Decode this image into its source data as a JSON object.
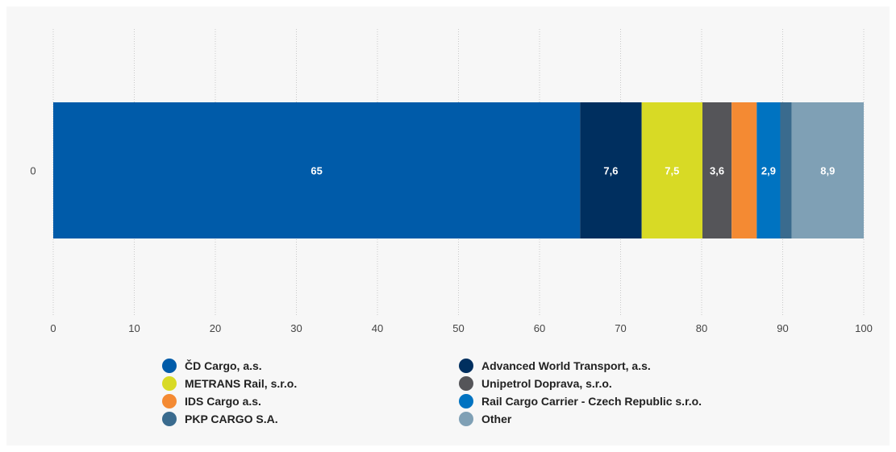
{
  "chart_data": {
    "type": "bar",
    "orientation": "horizontal",
    "stacked": true,
    "categories": [
      "0"
    ],
    "series": [
      {
        "name": "ČD Cargo, a.s.",
        "values": [
          65
        ],
        "label": "65",
        "color": "#005ba9"
      },
      {
        "name": "Advanced World Transport, a.s.",
        "values": [
          7.6
        ],
        "label": "7,6",
        "color": "#002f5f"
      },
      {
        "name": "METRANS Rail, s.r.o.",
        "values": [
          7.5
        ],
        "label": "7,5",
        "color": "#d8da25"
      },
      {
        "name": "Unipetrol Doprava, s.r.o.",
        "values": [
          3.6
        ],
        "label": "3,6",
        "color": "#555559"
      },
      {
        "name": "IDS Cargo a.s.",
        "values": [
          3.1
        ],
        "label": "",
        "color": "#f48a33"
      },
      {
        "name": "Rail Cargo Carrier - Czech Republic s.r.o.",
        "values": [
          2.9
        ],
        "label": "2,9",
        "color": "#0073c1"
      },
      {
        "name": "PKP CARGO S.A.",
        "values": [
          1.4
        ],
        "label": "",
        "color": "#3a6b8e"
      },
      {
        "name": "Other",
        "values": [
          8.9
        ],
        "label": "8,9",
        "color": "#7fa0b5"
      }
    ],
    "x_ticks": [
      "0",
      "10",
      "20",
      "30",
      "40",
      "50",
      "60",
      "70",
      "80",
      "90",
      "100"
    ],
    "xlim": [
      0,
      100
    ],
    "grid": "vertical-dotted",
    "legend_position": "bottom"
  }
}
